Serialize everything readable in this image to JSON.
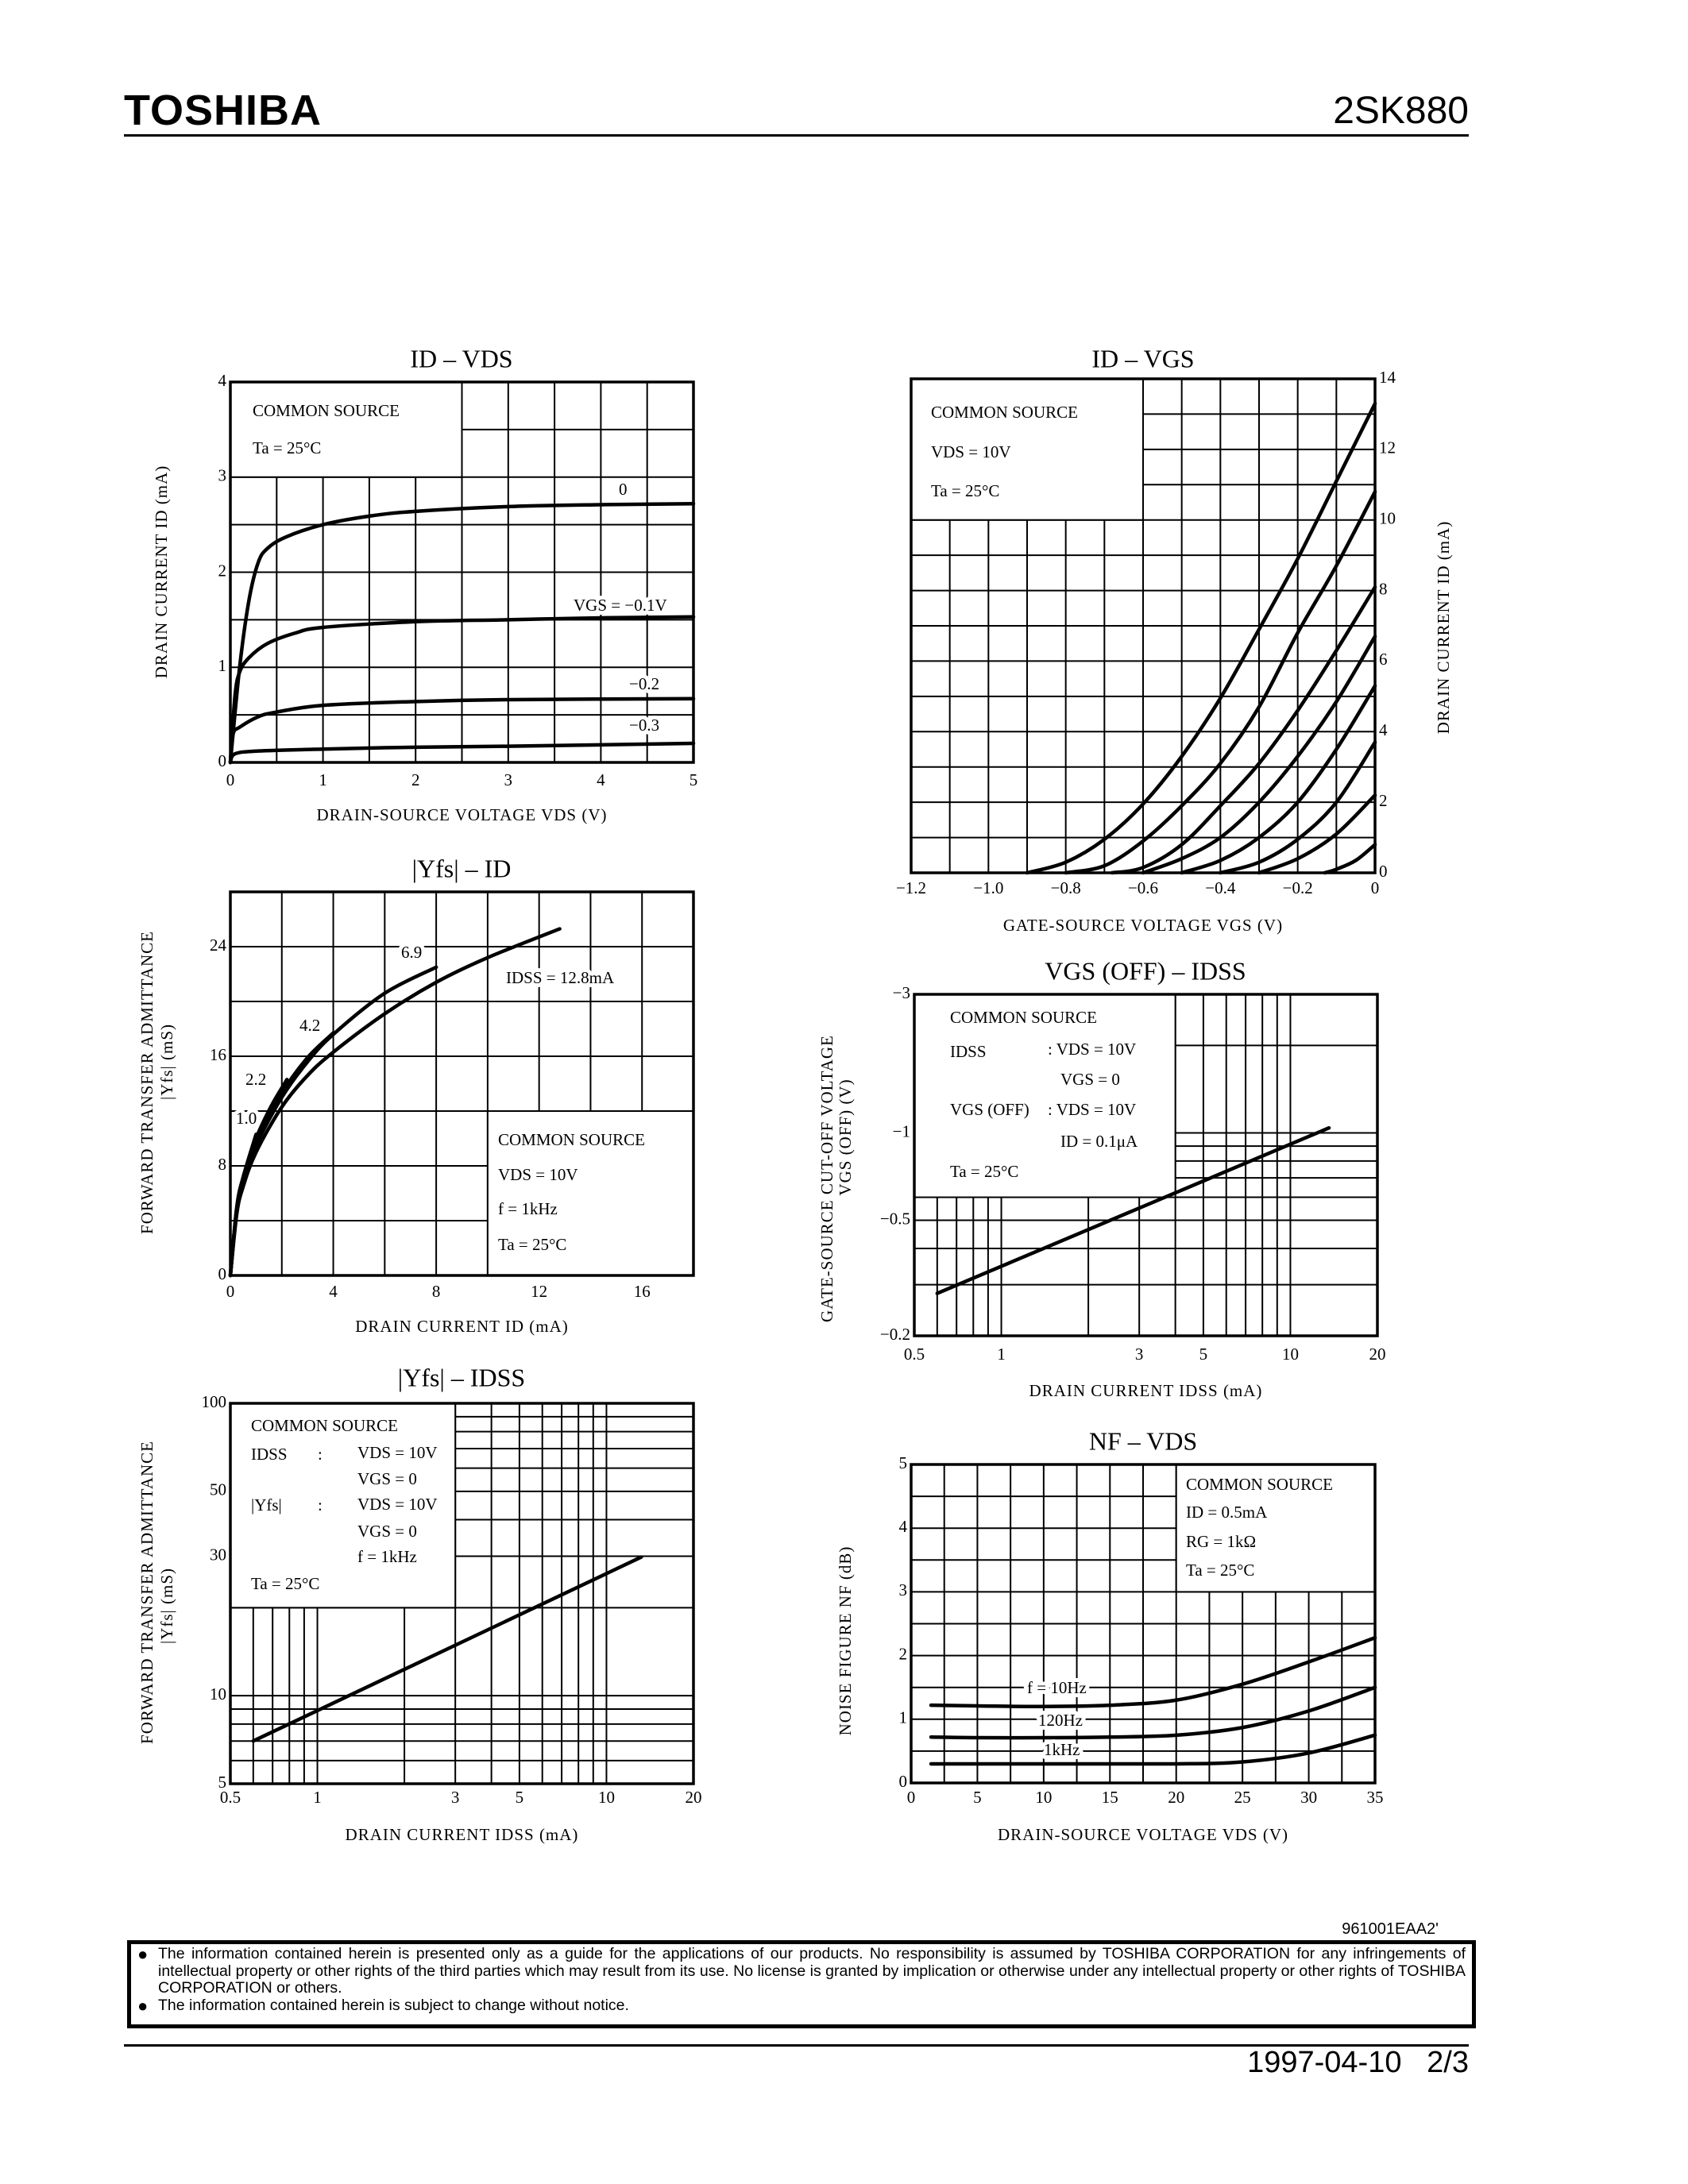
{
  "header": {
    "brand": "TOSHIBA",
    "part_number": "2SK880"
  },
  "footer": {
    "doc_code": "961001EAA2'",
    "disclaimer": [
      "The information contained herein is presented only as a guide for the applications of our products. No responsibility is assumed by TOSHIBA CORPORATION for any infringements of intellectual property or other rights of the third parties which may result from its use. No license is granted by implication or otherwise under any intellectual property or other rights of TOSHIBA CORPORATION or others.",
      "The information contained herein is subject to change without notice."
    ],
    "bullet_icon": "filled-circle",
    "date": "1997-04-10",
    "page": "2/3"
  },
  "chart_data": [
    {
      "type": "line",
      "title": "ID – VDS",
      "xlabel": "DRAIN-SOURCE VOLTAGE  VDS  (V)",
      "ylabel": [
        "DRAIN CURRENT  ID  (mA)"
      ],
      "xlim": [
        0,
        5
      ],
      "ylim": [
        0,
        4
      ],
      "xscale": "linear",
      "yscale": "linear",
      "grid": true,
      "x_ticks": [
        "0",
        "1",
        "2",
        "3",
        "4",
        "5"
      ],
      "y_ticks": [
        "0",
        "1",
        "2",
        "3",
        "4"
      ],
      "conditions": [
        [
          "COMMON SOURCE"
        ],
        [
          "Ta = 25°C"
        ]
      ],
      "series": [
        {
          "name": "0",
          "points": [
            [
              0,
              0
            ],
            [
              0.1,
              1.0
            ],
            [
              0.2,
              1.7
            ],
            [
              0.3,
              2.1
            ],
            [
              0.4,
              2.25
            ],
            [
              0.6,
              2.37
            ],
            [
              1,
              2.5
            ],
            [
              1.5,
              2.59
            ],
            [
              2,
              2.64
            ],
            [
              3,
              2.69
            ],
            [
              4,
              2.71
            ],
            [
              5,
              2.72
            ]
          ]
        },
        {
          "name": "VGS = −0.1V",
          "points": [
            [
              0,
              0
            ],
            [
              0.05,
              0.7
            ],
            [
              0.1,
              0.95
            ],
            [
              0.2,
              1.1
            ],
            [
              0.4,
              1.25
            ],
            [
              0.7,
              1.36
            ],
            [
              1,
              1.42
            ],
            [
              2,
              1.48
            ],
            [
              3,
              1.5
            ],
            [
              4,
              1.52
            ],
            [
              5,
              1.53
            ]
          ]
        },
        {
          "name": "−0.2",
          "points": [
            [
              0,
              0
            ],
            [
              0.03,
              0.3
            ],
            [
              0.1,
              0.37
            ],
            [
              0.3,
              0.48
            ],
            [
              0.5,
              0.53
            ],
            [
              1,
              0.6
            ],
            [
              2,
              0.64
            ],
            [
              3,
              0.66
            ],
            [
              5,
              0.67
            ]
          ]
        },
        {
          "name": "−0.3",
          "points": [
            [
              0,
              0
            ],
            [
              0.05,
              0.09
            ],
            [
              0.3,
              0.12
            ],
            [
              1,
              0.14
            ],
            [
              2,
              0.16
            ],
            [
              3,
              0.17
            ],
            [
              5,
              0.2
            ]
          ]
        }
      ]
    },
    {
      "type": "line",
      "title": "ID – VGS",
      "xlabel": "GATE-SOURCE VOLTAGE  VGS  (V)",
      "ylabel": [
        "DRAIN CURRENT  ID  (mA)"
      ],
      "xlim": [
        -1.2,
        0
      ],
      "ylim": [
        0,
        14
      ],
      "xscale": "linear",
      "yscale": "linear",
      "grid": true,
      "x_ticks": [
        "−1.2",
        "−1.0",
        "−0.8",
        "−0.6",
        "−0.4",
        "−0.2",
        "0"
      ],
      "y_ticks": [
        "0",
        "2",
        "4",
        "6",
        "8",
        "10",
        "12",
        "14"
      ],
      "conditions": [
        [
          "COMMON SOURCE"
        ],
        [
          "VDS = 10V"
        ],
        [
          "Ta = 25°C"
        ]
      ],
      "series": [
        {
          "points": [
            [
              -0.9,
              0
            ],
            [
              -0.8,
              0.3
            ],
            [
              -0.7,
              0.95
            ],
            [
              -0.6,
              1.95
            ],
            [
              -0.5,
              3.3
            ],
            [
              -0.4,
              4.95
            ],
            [
              -0.3,
              6.9
            ],
            [
              -0.2,
              8.9
            ],
            [
              -0.1,
              11.1
            ],
            [
              0,
              13.3
            ]
          ]
        },
        {
          "points": [
            [
              -0.8,
              0
            ],
            [
              -0.7,
              0.2
            ],
            [
              -0.6,
              0.9
            ],
            [
              -0.5,
              1.9
            ],
            [
              -0.4,
              3.1
            ],
            [
              -0.3,
              4.7
            ],
            [
              -0.2,
              6.8
            ],
            [
              -0.1,
              8.7
            ],
            [
              0,
              10.8
            ]
          ]
        },
        {
          "points": [
            [
              -0.68,
              0
            ],
            [
              -0.6,
              0.15
            ],
            [
              -0.5,
              0.8
            ],
            [
              -0.4,
              1.9
            ],
            [
              -0.3,
              3.1
            ],
            [
              -0.2,
              4.6
            ],
            [
              -0.1,
              6.3
            ],
            [
              0,
              8.1
            ]
          ]
        },
        {
          "points": [
            [
              -0.6,
              0
            ],
            [
              -0.5,
              0.4
            ],
            [
              -0.4,
              1.0
            ],
            [
              -0.3,
              2.0
            ],
            [
              -0.2,
              3.3
            ],
            [
              -0.1,
              4.85
            ],
            [
              0,
              6.7
            ]
          ]
        },
        {
          "points": [
            [
              -0.5,
              0
            ],
            [
              -0.4,
              0.35
            ],
            [
              -0.3,
              1.0
            ],
            [
              -0.2,
              2.0
            ],
            [
              -0.1,
              3.5
            ],
            [
              0,
              5.3
            ]
          ]
        },
        {
          "points": [
            [
              -0.4,
              0
            ],
            [
              -0.3,
              0.3
            ],
            [
              -0.2,
              0.95
            ],
            [
              -0.1,
              2.0
            ],
            [
              0,
              3.7
            ]
          ]
        },
        {
          "points": [
            [
              -0.3,
              0
            ],
            [
              -0.2,
              0.4
            ],
            [
              -0.1,
              1.1
            ],
            [
              0,
              2.2
            ]
          ]
        },
        {
          "points": [
            [
              -0.13,
              0
            ],
            [
              -0.1,
              0.1
            ],
            [
              -0.05,
              0.35
            ],
            [
              0,
              0.8
            ]
          ]
        }
      ]
    },
    {
      "type": "line",
      "title": "|Yfs| – ID",
      "xlabel": "DRAIN CURRENT  ID  (mA)",
      "ylabel": [
        "FORWARD TRANSFER ADMITTANCE",
        "|Yfs|  (mS)"
      ],
      "xlim": [
        0,
        18
      ],
      "ylim": [
        0,
        28
      ],
      "xscale": "linear",
      "yscale": "linear",
      "grid": true,
      "x_ticks": [
        "0",
        "4",
        "8",
        "12",
        "16"
      ],
      "y_ticks": [
        "0",
        "8",
        "16",
        "24"
      ],
      "conditions": [
        [
          "COMMON SOURCE"
        ],
        [
          "VDS = 10V"
        ],
        [
          "f = 1kHz"
        ],
        [
          "Ta = 25°C"
        ]
      ],
      "series": [
        {
          "name": "IDSS = 12.8mA",
          "points": [
            [
              0,
              0
            ],
            [
              0.25,
              4.5
            ],
            [
              0.5,
              6.5
            ],
            [
              1,
              9
            ],
            [
              2,
              12.3
            ],
            [
              3,
              14.6
            ],
            [
              4,
              16.3
            ],
            [
              6,
              19.1
            ],
            [
              8,
              21.4
            ],
            [
              10,
              23.2
            ],
            [
              12.8,
              25.3
            ]
          ]
        },
        {
          "name": "6.9",
          "points": [
            [
              0,
              0
            ],
            [
              0.25,
              4.7
            ],
            [
              0.5,
              6.8
            ],
            [
              1,
              9.5
            ],
            [
              2,
              13
            ],
            [
              3,
              15.6
            ],
            [
              4,
              17.6
            ],
            [
              6,
              20.6
            ],
            [
              8,
              22.5
            ]
          ]
        },
        {
          "name": "4.2",
          "points": [
            [
              0,
              0
            ],
            [
              0.25,
              4.8
            ],
            [
              0.5,
              6.9
            ],
            [
              1,
              9.7
            ],
            [
              2,
              13.3
            ],
            [
              3,
              15.9
            ],
            [
              4,
              17.7
            ]
          ]
        },
        {
          "name": "2.2",
          "points": [
            [
              0,
              0
            ],
            [
              0.25,
              4.9
            ],
            [
              0.5,
              7.0
            ],
            [
              1,
              10.0
            ],
            [
              1.6,
              12.4
            ],
            [
              2.2,
              14.3
            ]
          ]
        },
        {
          "name": "1.0",
          "points": [
            [
              0,
              0
            ],
            [
              0.25,
              5.0
            ],
            [
              0.5,
              7.2
            ],
            [
              1,
              10.3
            ]
          ]
        }
      ]
    },
    {
      "type": "line",
      "title": "VGS (OFF) – IDSS",
      "xlabel": "DRAIN CURRENT  IDSS  (mA)",
      "ylabel": [
        "GATE-SOURCE CUT-OFF VOLTAGE",
        "VGS (OFF)  (V)"
      ],
      "xlim": [
        0.5,
        20
      ],
      "ylim": [
        -0.2,
        -3
      ],
      "xscale": "log",
      "yscale": "log",
      "grid": true,
      "x_ticks": [
        "0.5",
        "1",
        "3",
        "5",
        "10",
        "20"
      ],
      "y_ticks": [
        "−0.2",
        "−0.5",
        "−1",
        "−3"
      ],
      "conditions": [
        [
          "COMMON SOURCE"
        ],
        [
          "IDSS",
          ": VDS = 10V"
        ],
        [
          "VGS = 0"
        ],
        [
          "VGS (OFF)",
          ": VDS = 10V"
        ],
        [
          "ID = 0.1μA"
        ],
        [
          "Ta = 25°C"
        ]
      ],
      "series": [
        {
          "points": [
            [
              0.6,
              -0.28
            ],
            [
              13.6,
              -1.04
            ]
          ]
        }
      ]
    },
    {
      "type": "line",
      "title": "|Yfs| – IDSS",
      "xlabel": "DRAIN CURRENT  IDSS  (mA)",
      "ylabel": [
        "FORWARD TRANSFER ADMITTANCE",
        "|Yfs|  (mS)"
      ],
      "xlim": [
        0.5,
        20
      ],
      "ylim": [
        5,
        100
      ],
      "xscale": "log",
      "yscale": "log",
      "grid": true,
      "x_ticks": [
        "0.5",
        "1",
        "3",
        "5",
        "10",
        "20"
      ],
      "y_ticks": [
        "5",
        "10",
        "30",
        "50",
        "100"
      ],
      "conditions": [
        [
          "COMMON SOURCE"
        ],
        [
          "IDSS",
          ":",
          "VDS = 10V"
        ],
        [
          "VGS = 0"
        ],
        [
          "|Yfs|",
          ":",
          "VDS = 10V"
        ],
        [
          "VGS = 0"
        ],
        [
          "f = 1kHz"
        ],
        [
          "Ta = 25°C"
        ]
      ],
      "series": [
        {
          "points": [
            [
              0.6,
              7.0
            ],
            [
              13.2,
              29.8
            ]
          ]
        }
      ]
    },
    {
      "type": "line",
      "title": "NF – VDS",
      "xlabel": "DRAIN-SOURCE VOLTAGE  VDS  (V)",
      "ylabel": [
        "NOISE FIGURE  NF  (dB)"
      ],
      "xlim": [
        0,
        35
      ],
      "ylim": [
        0,
        5
      ],
      "xscale": "linear",
      "yscale": "linear",
      "grid": true,
      "x_ticks": [
        "0",
        "5",
        "10",
        "15",
        "20",
        "25",
        "30",
        "35"
      ],
      "y_ticks": [
        "0",
        "1",
        "2",
        "3",
        "4",
        "5"
      ],
      "conditions": [
        [
          "COMMON SOURCE"
        ],
        [
          "ID = 0.5mA"
        ],
        [
          "RG = 1kΩ"
        ],
        [
          "Ta = 25°C"
        ]
      ],
      "series": [
        {
          "name": "f = 10Hz",
          "points": [
            [
              1.5,
              1.22
            ],
            [
              5,
              1.21
            ],
            [
              10,
              1.2
            ],
            [
              15,
              1.22
            ],
            [
              20,
              1.3
            ],
            [
              25,
              1.55
            ],
            [
              30,
              1.9
            ],
            [
              35,
              2.28
            ]
          ]
        },
        {
          "name": "120Hz",
          "points": [
            [
              1.5,
              0.72
            ],
            [
              5,
              0.71
            ],
            [
              10,
              0.71
            ],
            [
              15,
              0.72
            ],
            [
              20,
              0.75
            ],
            [
              25,
              0.87
            ],
            [
              30,
              1.13
            ],
            [
              35,
              1.5
            ]
          ]
        },
        {
          "name": "1kHz",
          "points": [
            [
              1.5,
              0.3
            ],
            [
              10,
              0.3
            ],
            [
              20,
              0.3
            ],
            [
              25,
              0.33
            ],
            [
              30,
              0.47
            ],
            [
              35,
              0.75
            ]
          ]
        }
      ]
    }
  ]
}
